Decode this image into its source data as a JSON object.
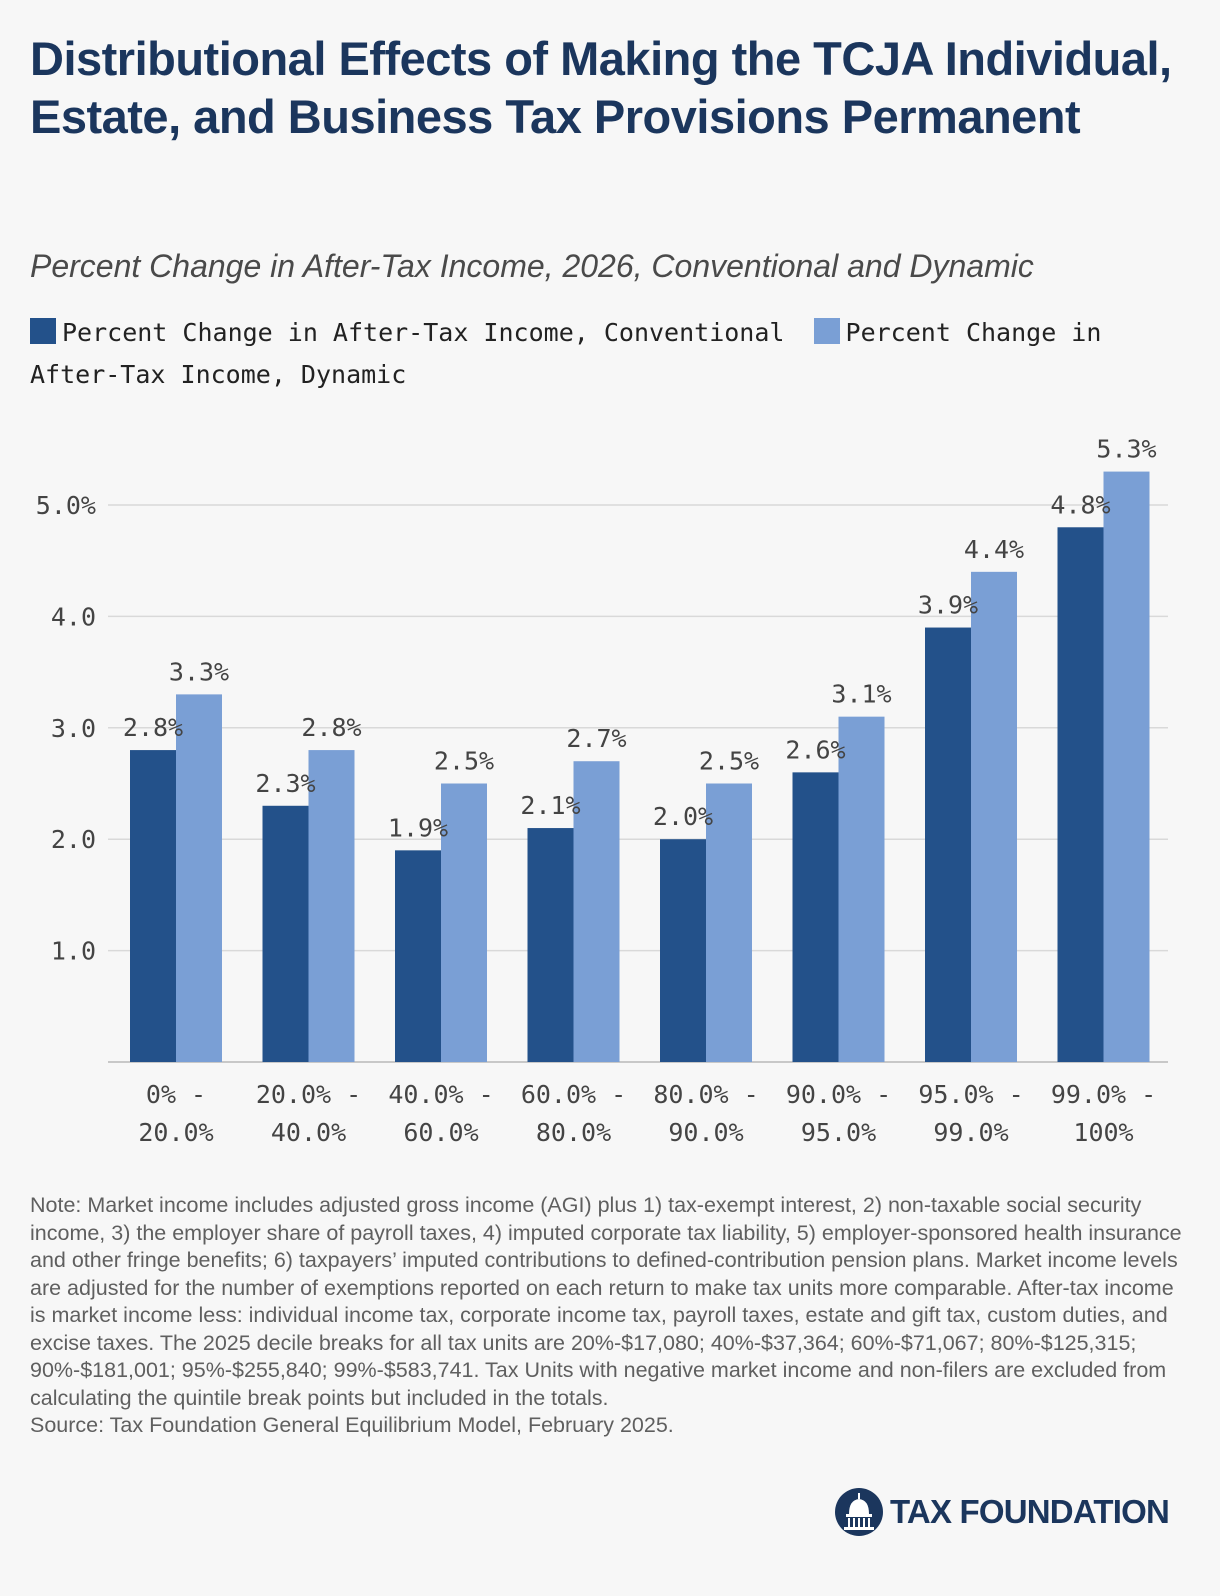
{
  "title": "Distributional Effects of Making the TCJA Individual, Estate, and Business Tax Provisions Permanent",
  "subtitle": "Percent Change in After-Tax Income, 2026, Conventional and Dynamic",
  "colors": {
    "conventional": "#23518a",
    "dynamic": "#7a9fd5",
    "title": "#1b365d",
    "grid": "#d9d9d9"
  },
  "chart_data": {
    "type": "bar",
    "title": "Distributional Effects of Making the TCJA Individual, Estate, and Business Tax Provisions Permanent",
    "subtitle": "Percent Change in After-Tax Income, 2026, Conventional and Dynamic",
    "categories": [
      [
        "0% -",
        "20.0%"
      ],
      [
        "20.0% -",
        "40.0%"
      ],
      [
        "40.0% -",
        "60.0%"
      ],
      [
        "60.0% -",
        "80.0%"
      ],
      [
        "80.0% -",
        "90.0%"
      ],
      [
        "90.0% -",
        "95.0%"
      ],
      [
        "95.0% -",
        "99.0%"
      ],
      [
        "99.0% -",
        "100%"
      ]
    ],
    "series": [
      {
        "name": "Percent Change in After-Tax Income, Conventional",
        "values": [
          2.8,
          2.3,
          1.9,
          2.1,
          2.0,
          2.6,
          3.9,
          4.8
        ],
        "labels": [
          "2.8%",
          "2.3%",
          "1.9%",
          "2.1%",
          "2.0%",
          "2.6%",
          "3.9%",
          "4.8%"
        ],
        "color": "#23518a"
      },
      {
        "name": "Percent Change in After-Tax Income, Dynamic",
        "values": [
          3.3,
          2.8,
          2.5,
          2.7,
          2.5,
          3.1,
          4.4,
          5.3
        ],
        "labels": [
          "3.3%",
          "2.8%",
          "2.5%",
          "2.7%",
          "2.5%",
          "3.1%",
          "4.4%",
          "5.3%"
        ],
        "color": "#7a9fd5"
      }
    ],
    "y_ticks": [
      {
        "value": 1.0,
        "label": "1.0"
      },
      {
        "value": 2.0,
        "label": "2.0"
      },
      {
        "value": 3.0,
        "label": "3.0"
      },
      {
        "value": 4.0,
        "label": "4.0"
      },
      {
        "value": 5.0,
        "label": "5.0%"
      }
    ],
    "ylim": [
      0,
      5.3
    ],
    "grid": true,
    "legend_position": "top"
  },
  "note": "Note: Market income includes adjusted gross income (AGI) plus 1) tax-exempt interest, 2) non-taxable social security income, 3) the employer share of payroll taxes, 4) imputed corporate tax liability, 5) employer-sponsored health insurance and other fringe benefits; 6) taxpayers’ imputed contributions to defined-contribution pension plans. Market income levels are adjusted for the number of exemptions reported on each return to make tax units more comparable. After-tax income is market income less: individual income tax, corporate income tax, payroll taxes, estate and gift tax, custom duties, and excise taxes. The 2025 decile breaks for all tax units are 20%-$17,080; 40%-$37,364; 60%-$71,067; 80%-$125,315; 90%-$181,001; 95%-$255,840; 99%-$583,741. Tax Units with negative market income and non-filers are excluded from calculating the quintile break points but included in the totals.",
  "source": "Source: Tax Foundation General Equilibrium Model, February 2025.",
  "logo_text": "TAX FOUNDATION",
  "logo_icon": "capitol-dome-icon"
}
